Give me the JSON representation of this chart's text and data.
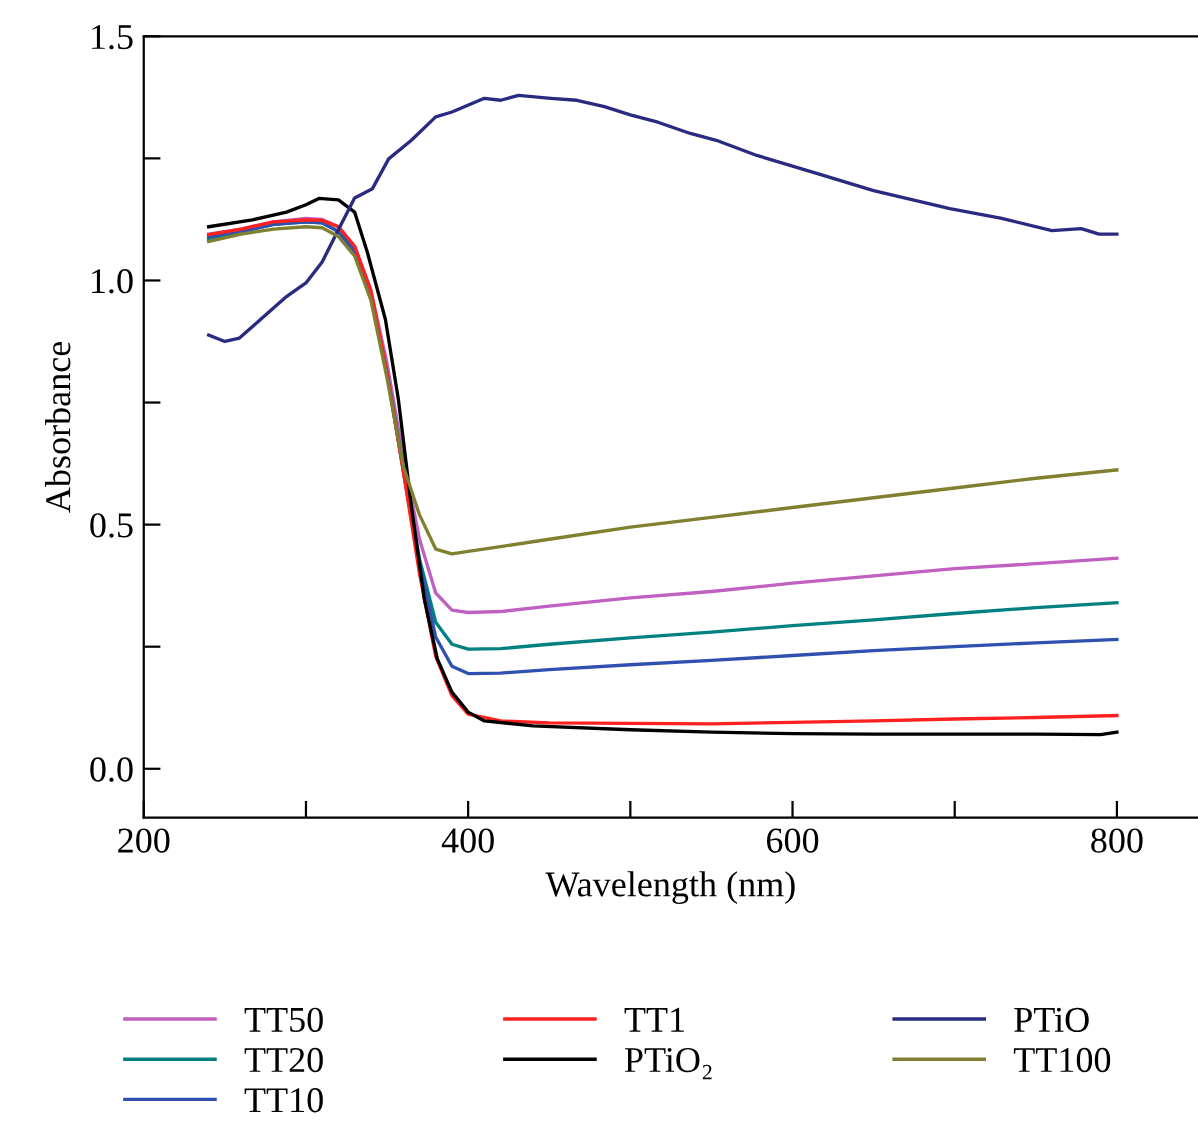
{
  "chart_data": {
    "type": "line",
    "xlabel": "Wavelength (nm)",
    "ylabel": "Absorbance",
    "xlim": [
      200,
      850
    ],
    "ylim": [
      -0.1,
      1.5
    ],
    "xticks": [
      200,
      {
        "value": 300,
        "label": null
      },
      400,
      {
        "value": 500,
        "label": null
      },
      600,
      {
        "value": 700,
        "label": null
      },
      800
    ],
    "yticks": [
      {
        "value": 0,
        "label": "0.0"
      },
      {
        "value": 0.25,
        "label": null
      },
      0.5,
      {
        "value": 0.75,
        "label": null
      },
      {
        "value": 1,
        "label": "1.0"
      },
      {
        "value": 1.25,
        "label": null
      },
      1.5
    ],
    "grid": false,
    "legend": "bottom",
    "marker": "none",
    "line_style": "solid",
    "series": [
      {
        "name": "TT50",
        "color": "#c060c0",
        "x": [
          240,
          260,
          280,
          300,
          310,
          320,
          330,
          340,
          350,
          360,
          370,
          380,
          390,
          400,
          420,
          450,
          500,
          550,
          600,
          650,
          700,
          750,
          800
        ],
        "values": [
          1.095,
          1.105,
          1.12,
          1.127,
          1.125,
          1.11,
          1.07,
          0.98,
          0.83,
          0.64,
          0.47,
          0.36,
          0.325,
          0.32,
          0.322,
          0.333,
          0.35,
          0.363,
          0.38,
          0.395,
          0.41,
          0.42,
          0.431
        ]
      },
      {
        "name": "TT20",
        "color": "#008080",
        "x": [
          240,
          260,
          280,
          300,
          310,
          320,
          330,
          340,
          350,
          360,
          370,
          380,
          390,
          400,
          420,
          450,
          500,
          550,
          600,
          650,
          700,
          750,
          800
        ],
        "values": [
          1.085,
          1.1,
          1.115,
          1.12,
          1.118,
          1.1,
          1.06,
          0.97,
          0.81,
          0.62,
          0.43,
          0.3,
          0.255,
          0.245,
          0.246,
          0.255,
          0.268,
          0.28,
          0.293,
          0.305,
          0.318,
          0.33,
          0.34
        ]
      },
      {
        "name": "TT10",
        "color": "#3050b0",
        "x": [
          240,
          260,
          280,
          300,
          310,
          320,
          330,
          340,
          350,
          360,
          370,
          380,
          390,
          400,
          420,
          450,
          500,
          550,
          600,
          650,
          700,
          750,
          800
        ],
        "values": [
          1.09,
          1.1,
          1.115,
          1.12,
          1.118,
          1.1,
          1.06,
          0.97,
          0.81,
          0.61,
          0.42,
          0.27,
          0.21,
          0.195,
          0.196,
          0.203,
          0.213,
          0.222,
          0.232,
          0.242,
          0.25,
          0.258,
          0.265
        ]
      },
      {
        "name": "TT1",
        "color": "#ff2020",
        "x": [
          240,
          260,
          280,
          300,
          310,
          320,
          330,
          340,
          350,
          360,
          370,
          380,
          390,
          400,
          420,
          450,
          500,
          550,
          600,
          650,
          700,
          750,
          800
        ],
        "values": [
          1.094,
          1.105,
          1.12,
          1.124,
          1.123,
          1.11,
          1.07,
          0.98,
          0.81,
          0.61,
          0.4,
          0.23,
          0.15,
          0.112,
          0.098,
          0.094,
          0.093,
          0.092,
          0.095,
          0.098,
          0.102,
          0.105,
          0.109
        ]
      },
      {
        "name": "PTiO₂",
        "color": "#000000",
        "x": [
          240,
          267,
          288,
          300,
          308,
          320,
          330,
          338,
          349,
          357,
          365,
          373,
          381,
          390,
          400,
          410,
          440,
          500,
          550,
          600,
          650,
          700,
          750,
          790,
          800
        ],
        "values": [
          1.11,
          1.124,
          1.14,
          1.155,
          1.168,
          1.165,
          1.14,
          1.056,
          0.92,
          0.756,
          0.538,
          0.347,
          0.225,
          0.157,
          0.116,
          0.098,
          0.088,
          0.08,
          0.075,
          0.072,
          0.071,
          0.071,
          0.071,
          0.07,
          0.075
        ]
      },
      {
        "name": "PTiO",
        "color": "#2a2a80",
        "x": [
          240,
          250,
          259,
          288,
          300,
          310,
          320,
          330,
          341,
          351,
          365,
          380,
          390,
          410,
          420,
          431,
          451,
          467,
          484,
          500,
          517,
          537,
          553,
          578,
          619,
          650,
          697,
          729,
          760,
          778,
          789,
          800
        ],
        "values": [
          0.888,
          0.875,
          0.882,
          0.967,
          0.995,
          1.038,
          1.104,
          1.169,
          1.188,
          1.249,
          1.287,
          1.335,
          1.345,
          1.373,
          1.369,
          1.379,
          1.373,
          1.369,
          1.356,
          1.339,
          1.324,
          1.301,
          1.287,
          1.256,
          1.215,
          1.184,
          1.147,
          1.127,
          1.102,
          1.106,
          1.095,
          1.095
        ]
      },
      {
        "name": "TT100",
        "color": "#808030",
        "x": [
          240,
          260,
          280,
          300,
          310,
          320,
          330,
          340,
          350,
          360,
          370,
          380,
          390,
          400,
          420,
          450,
          500,
          550,
          600,
          650,
          700,
          750,
          800
        ],
        "values": [
          1.08,
          1.095,
          1.105,
          1.11,
          1.108,
          1.09,
          1.05,
          0.96,
          0.8,
          0.62,
          0.52,
          0.45,
          0.44,
          0.445,
          0.455,
          0.47,
          0.495,
          0.515,
          0.535,
          0.555,
          0.575,
          0.595,
          0.612
        ]
      }
    ]
  }
}
